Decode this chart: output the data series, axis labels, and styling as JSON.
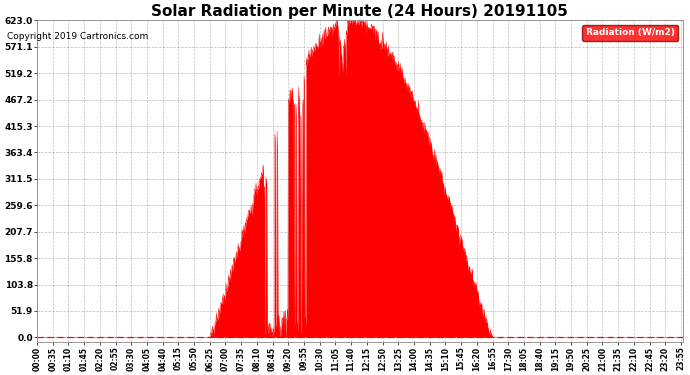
{
  "title": "Solar Radiation per Minute (24 Hours) 20191105",
  "copyright_text": "Copyright 2019 Cartronics.com",
  "legend_label": "Radiation (W/m2)",
  "yticks": [
    0.0,
    51.9,
    103.8,
    155.8,
    207.7,
    259.6,
    311.5,
    363.4,
    415.3,
    467.2,
    519.2,
    571.1,
    623.0
  ],
  "ymax": 623.0,
  "fill_color": "#FF0000",
  "line_color": "#FF0000",
  "dashed_line_color": "#FF0000",
  "grid_color": "#AAAAAA",
  "bg_color": "#FFFFFF",
  "title_fontsize": 11,
  "legend_bg": "#FF0000",
  "legend_text_color": "#FFFFFF",
  "tick_interval_minutes": 35,
  "total_minutes": 1440,
  "data_interval_minutes": 1,
  "sunrise_minute": 385,
  "sunset_minute": 1015,
  "peak_minute": 720,
  "peak_value": 623.0
}
